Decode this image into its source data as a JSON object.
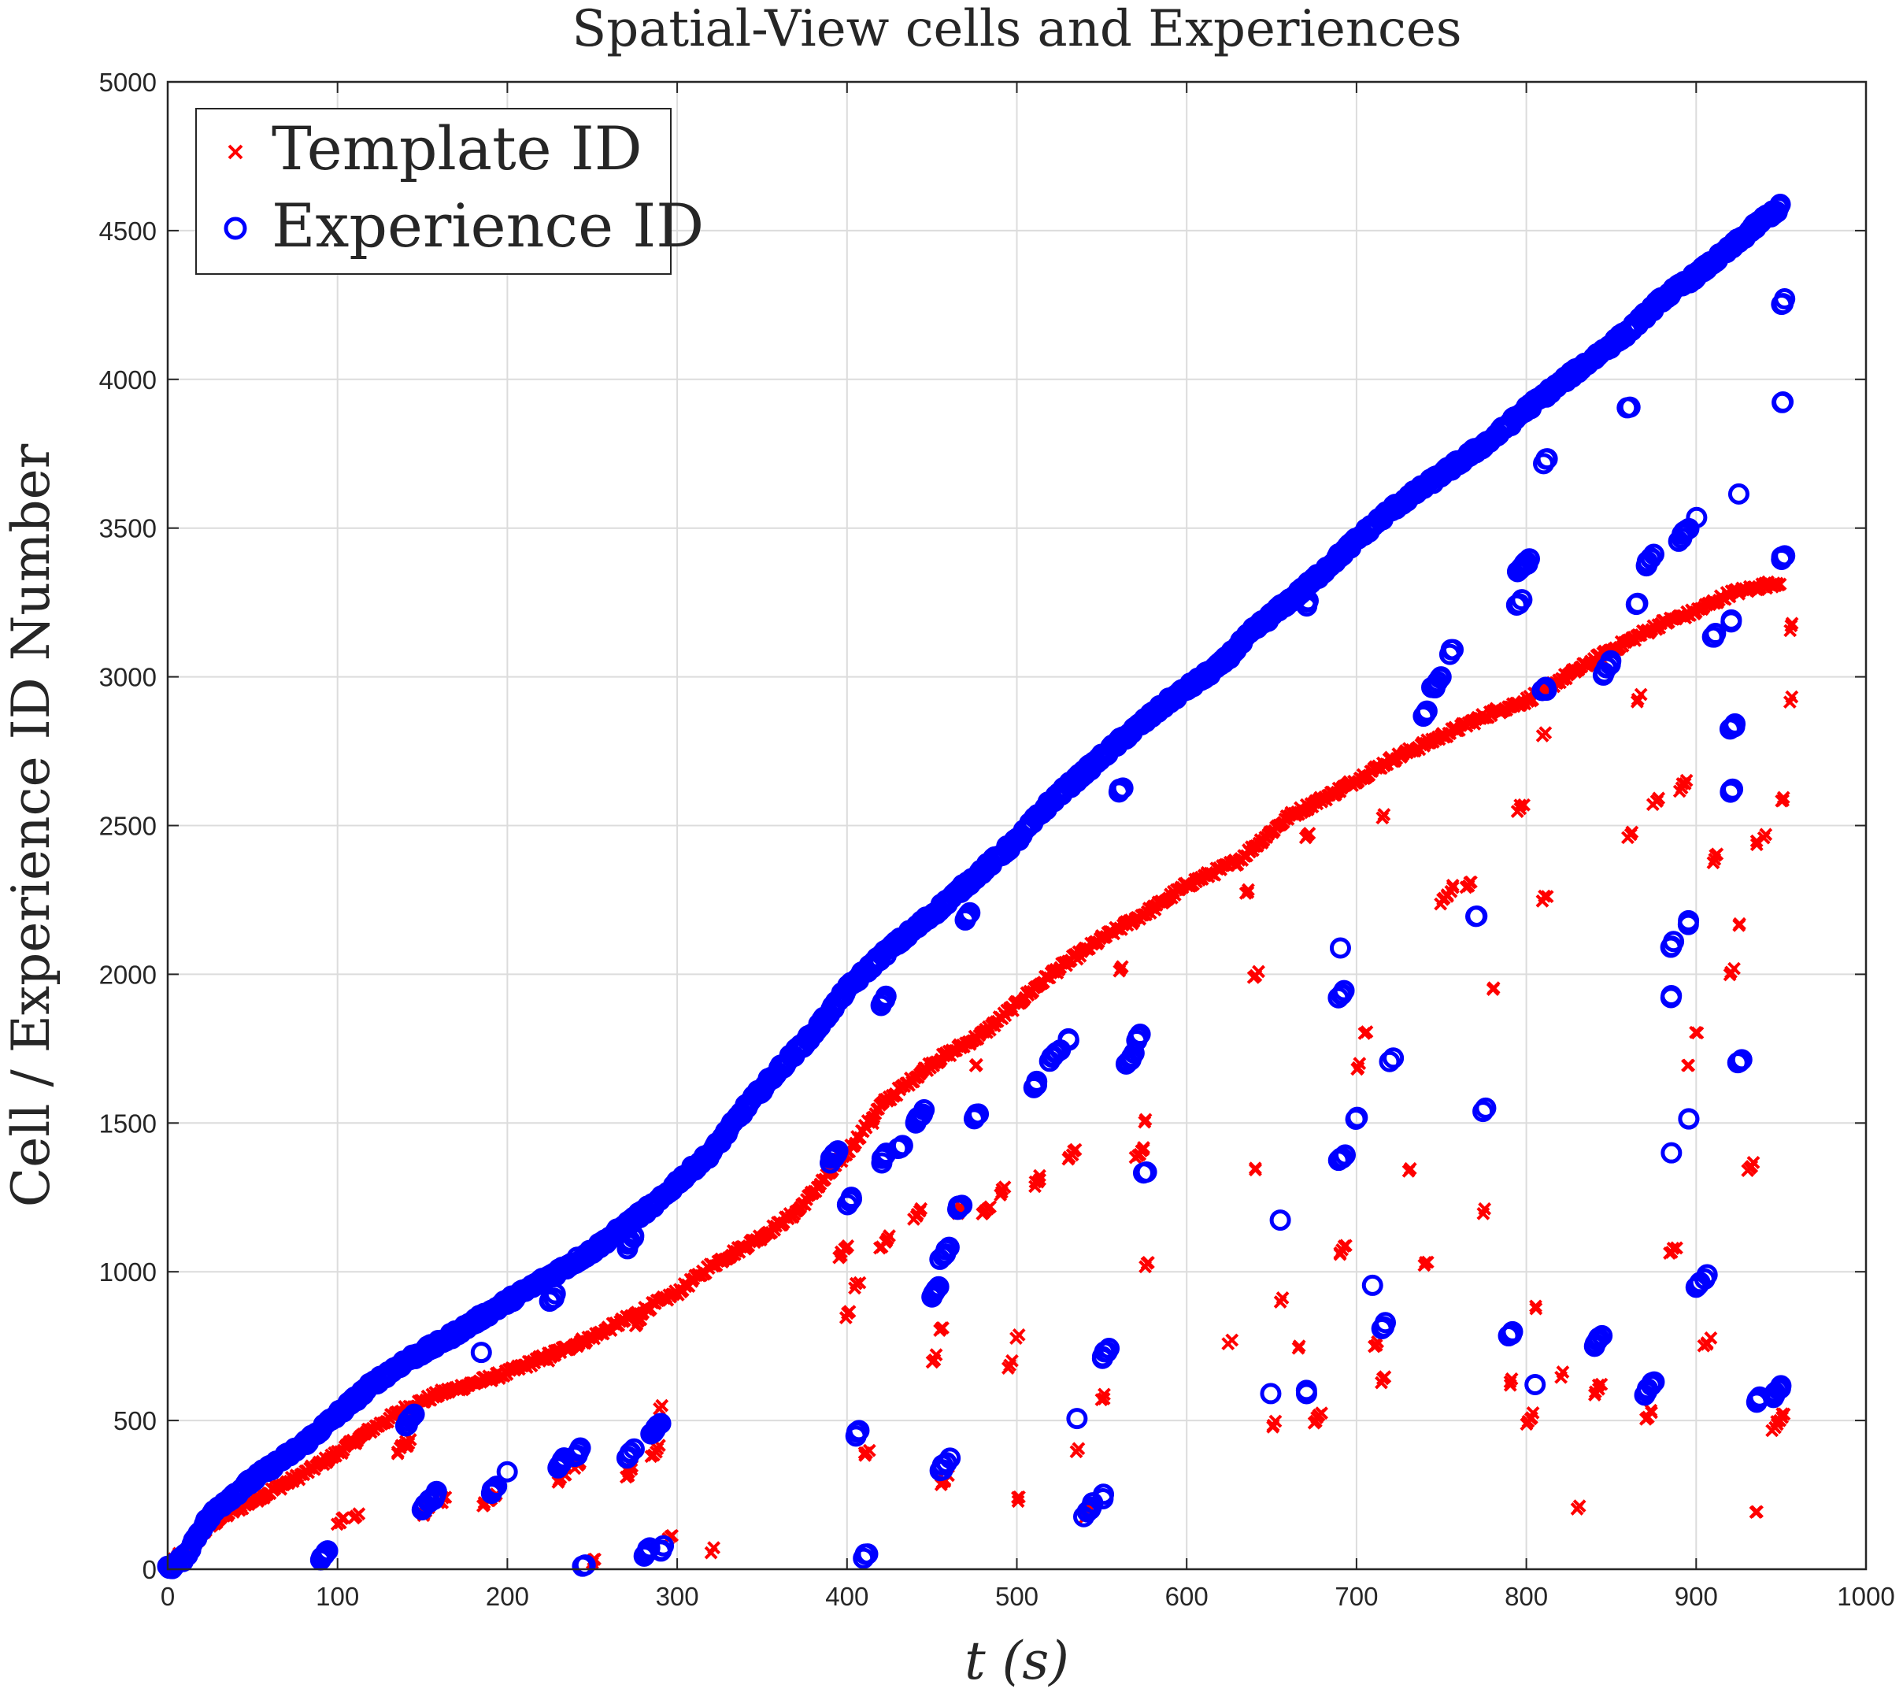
{
  "chart_data": {
    "type": "scatter",
    "title": "Spatial-View cells and Experiences",
    "xlabel": "t (s)",
    "ylabel": "Cell / Experience ID Number",
    "xlim": [
      0,
      1000
    ],
    "ylim": [
      0,
      5000
    ],
    "xticks": [
      0,
      100,
      200,
      300,
      400,
      500,
      600,
      700,
      800,
      900,
      1000
    ],
    "yticks": [
      0,
      500,
      1000,
      1500,
      2000,
      2500,
      3000,
      3500,
      4000,
      4500,
      5000
    ],
    "grid": true,
    "legend_position": "top-left",
    "series": [
      {
        "name": "Template ID",
        "marker": "x",
        "color": "#ff0000",
        "main_trend": [
          [
            0,
            0
          ],
          [
            10,
            40
          ],
          [
            20,
            120
          ],
          [
            30,
            170
          ],
          [
            50,
            230
          ],
          [
            80,
            320
          ],
          [
            100,
            390
          ],
          [
            120,
            470
          ],
          [
            140,
            540
          ],
          [
            160,
            590
          ],
          [
            200,
            660
          ],
          [
            250,
            780
          ],
          [
            280,
            870
          ],
          [
            300,
            930
          ],
          [
            320,
            1020
          ],
          [
            350,
            1120
          ],
          [
            370,
            1200
          ],
          [
            400,
            1400
          ],
          [
            420,
            1560
          ],
          [
            450,
            1700
          ],
          [
            480,
            1800
          ],
          [
            500,
            1900
          ],
          [
            520,
            2000
          ],
          [
            550,
            2120
          ],
          [
            580,
            2220
          ],
          [
            600,
            2300
          ],
          [
            630,
            2380
          ],
          [
            660,
            2530
          ],
          [
            690,
            2620
          ],
          [
            720,
            2720
          ],
          [
            750,
            2800
          ],
          [
            780,
            2880
          ],
          [
            800,
            2920
          ],
          [
            820,
            2990
          ],
          [
            850,
            3090
          ],
          [
            880,
            3180
          ],
          [
            900,
            3220
          ],
          [
            920,
            3280
          ],
          [
            950,
            3320
          ]
        ],
        "clusters": [
          [
            0,
            0,
            8
          ],
          [
            100,
            150,
            4
          ],
          [
            110,
            170,
            3
          ],
          [
            135,
            390,
            6
          ],
          [
            140,
            410,
            4
          ],
          [
            150,
            180,
            6
          ],
          [
            160,
            220,
            4
          ],
          [
            185,
            210,
            4
          ],
          [
            190,
            230,
            4
          ],
          [
            225,
            700,
            6
          ],
          [
            230,
            290,
            5
          ],
          [
            240,
            340,
            4
          ],
          [
            250,
            20,
            3
          ],
          [
            270,
            310,
            5
          ],
          [
            275,
            820,
            5
          ],
          [
            285,
            380,
            5
          ],
          [
            290,
            540,
            2
          ],
          [
            295,
            100,
            3
          ],
          [
            320,
            60,
            2
          ],
          [
            395,
            1050,
            6
          ],
          [
            400,
            850,
            3
          ],
          [
            405,
            950,
            3
          ],
          [
            410,
            380,
            4
          ],
          [
            415,
            1500,
            2
          ],
          [
            420,
            1080,
            6
          ],
          [
            440,
            1180,
            5
          ],
          [
            450,
            700,
            3
          ],
          [
            455,
            800,
            3
          ],
          [
            455,
            280,
            5
          ],
          [
            465,
            1200,
            4
          ],
          [
            475,
            1690,
            2
          ],
          [
            480,
            1190,
            5
          ],
          [
            490,
            1260,
            4
          ],
          [
            495,
            680,
            3
          ],
          [
            500,
            780,
            2
          ],
          [
            500,
            230,
            3
          ],
          [
            510,
            1290,
            5
          ],
          [
            530,
            1380,
            5
          ],
          [
            535,
            400,
            2
          ],
          [
            540,
            180,
            6
          ],
          [
            550,
            570,
            3
          ],
          [
            560,
            2010,
            3
          ],
          [
            570,
            1380,
            6
          ],
          [
            575,
            1020,
            3
          ],
          [
            575,
            1500,
            2
          ],
          [
            625,
            760,
            2
          ],
          [
            635,
            2270,
            3
          ],
          [
            640,
            1990,
            3
          ],
          [
            640,
            1340,
            2
          ],
          [
            650,
            480,
            3
          ],
          [
            655,
            900,
            2
          ],
          [
            665,
            740,
            2
          ],
          [
            670,
            2460,
            3
          ],
          [
            675,
            490,
            5
          ],
          [
            690,
            1060,
            5
          ],
          [
            700,
            1680,
            3
          ],
          [
            705,
            1800,
            2
          ],
          [
            710,
            750,
            3
          ],
          [
            715,
            2530,
            2
          ],
          [
            715,
            630,
            3
          ],
          [
            730,
            1340,
            2
          ],
          [
            740,
            1020,
            3
          ],
          [
            750,
            2240,
            8
          ],
          [
            765,
            2290,
            4
          ],
          [
            775,
            1200,
            2
          ],
          [
            780,
            1950,
            2
          ],
          [
            790,
            620,
            3
          ],
          [
            795,
            2550,
            4
          ],
          [
            800,
            490,
            5
          ],
          [
            805,
            880,
            2
          ],
          [
            810,
            2250,
            3
          ],
          [
            810,
            2800,
            2
          ],
          [
            820,
            650,
            2
          ],
          [
            830,
            200,
            2
          ],
          [
            840,
            590,
            5
          ],
          [
            860,
            2460,
            3
          ],
          [
            865,
            2920,
            3
          ],
          [
            870,
            500,
            5
          ],
          [
            875,
            2570,
            4
          ],
          [
            885,
            1060,
            4
          ],
          [
            890,
            2620,
            5
          ],
          [
            895,
            1690,
            2
          ],
          [
            900,
            1800,
            2
          ],
          [
            905,
            750,
            4
          ],
          [
            910,
            2380,
            4
          ],
          [
            920,
            2000,
            3
          ],
          [
            925,
            2160,
            2
          ],
          [
            930,
            1340,
            4
          ],
          [
            935,
            2440,
            2
          ],
          [
            940,
            2460,
            2
          ],
          [
            945,
            470,
            8
          ],
          [
            950,
            2580,
            3
          ],
          [
            955,
            3160,
            3
          ],
          [
            955,
            2920,
            2
          ],
          [
            935,
            190,
            2
          ]
        ]
      },
      {
        "name": "Experience ID",
        "marker": "o",
        "color": "#0000ff",
        "main_trend": [
          [
            0,
            0
          ],
          [
            10,
            40
          ],
          [
            20,
            140
          ],
          [
            30,
            210
          ],
          [
            50,
            300
          ],
          [
            80,
            420
          ],
          [
            100,
            520
          ],
          [
            120,
            620
          ],
          [
            140,
            700
          ],
          [
            160,
            760
          ],
          [
            200,
            900
          ],
          [
            250,
            1070
          ],
          [
            280,
            1200
          ],
          [
            290,
            1240
          ],
          [
            300,
            1300
          ],
          [
            320,
            1400
          ],
          [
            340,
            1550
          ],
          [
            360,
            1680
          ],
          [
            380,
            1800
          ],
          [
            400,
            1950
          ],
          [
            420,
            2060
          ],
          [
            450,
            2200
          ],
          [
            470,
            2300
          ],
          [
            500,
            2450
          ],
          [
            520,
            2580
          ],
          [
            540,
            2680
          ],
          [
            560,
            2780
          ],
          [
            590,
            2920
          ],
          [
            620,
            3040
          ],
          [
            640,
            3160
          ],
          [
            670,
            3300
          ],
          [
            700,
            3460
          ],
          [
            720,
            3560
          ],
          [
            750,
            3680
          ],
          [
            780,
            3800
          ],
          [
            800,
            3900
          ],
          [
            830,
            4030
          ],
          [
            860,
            4160
          ],
          [
            880,
            4270
          ],
          [
            900,
            4350
          ],
          [
            920,
            4440
          ],
          [
            940,
            4540
          ],
          [
            950,
            4580
          ]
        ],
        "clusters": [
          [
            90,
            30,
            5
          ],
          [
            140,
            480,
            6
          ],
          [
            150,
            200,
            5
          ],
          [
            155,
            230,
            5
          ],
          [
            185,
            730,
            1
          ],
          [
            190,
            260,
            4
          ],
          [
            200,
            330,
            1
          ],
          [
            225,
            900,
            4
          ],
          [
            230,
            340,
            5
          ],
          [
            240,
            380,
            4
          ],
          [
            245,
            10,
            2
          ],
          [
            270,
            1080,
            6
          ],
          [
            270,
            370,
            5
          ],
          [
            280,
            40,
            5
          ],
          [
            285,
            450,
            6
          ],
          [
            290,
            60,
            3
          ],
          [
            390,
            1370,
            6
          ],
          [
            400,
            1230,
            4
          ],
          [
            405,
            450,
            3
          ],
          [
            410,
            40,
            3
          ],
          [
            420,
            1370,
            4
          ],
          [
            420,
            1900,
            4
          ],
          [
            430,
            1410,
            3
          ],
          [
            440,
            1500,
            6
          ],
          [
            450,
            920,
            5
          ],
          [
            455,
            1040,
            6
          ],
          [
            455,
            330,
            6
          ],
          [
            465,
            1210,
            3
          ],
          [
            470,
            2180,
            4
          ],
          [
            475,
            1510,
            4
          ],
          [
            510,
            1620,
            3
          ],
          [
            520,
            1710,
            6
          ],
          [
            530,
            1780,
            2
          ],
          [
            535,
            510,
            1
          ],
          [
            540,
            180,
            6
          ],
          [
            550,
            710,
            5
          ],
          [
            550,
            240,
            2
          ],
          [
            560,
            2610,
            3
          ],
          [
            565,
            1700,
            5
          ],
          [
            570,
            1780,
            3
          ],
          [
            575,
            1330,
            2
          ],
          [
            610,
            2990,
            3
          ],
          [
            650,
            590,
            1
          ],
          [
            655,
            1170,
            1
          ],
          [
            670,
            3240,
            3
          ],
          [
            670,
            590,
            2
          ],
          [
            690,
            1370,
            4
          ],
          [
            690,
            1920,
            4
          ],
          [
            690,
            2090,
            1
          ],
          [
            700,
            1510,
            2
          ],
          [
            710,
            950,
            1
          ],
          [
            715,
            810,
            3
          ],
          [
            720,
            1710,
            2
          ],
          [
            740,
            2870,
            3
          ],
          [
            745,
            2960,
            6
          ],
          [
            755,
            3080,
            3
          ],
          [
            770,
            2190,
            2
          ],
          [
            775,
            1540,
            2
          ],
          [
            790,
            780,
            3
          ],
          [
            795,
            3350,
            6
          ],
          [
            795,
            3240,
            3
          ],
          [
            800,
            3380,
            3
          ],
          [
            805,
            620,
            1
          ],
          [
            810,
            3720,
            3
          ],
          [
            810,
            2950,
            3
          ],
          [
            840,
            750,
            5
          ],
          [
            845,
            3010,
            6
          ],
          [
            860,
            3900,
            2
          ],
          [
            865,
            3240,
            2
          ],
          [
            870,
            590,
            6
          ],
          [
            870,
            3370,
            6
          ],
          [
            885,
            1400,
            1
          ],
          [
            885,
            2090,
            3
          ],
          [
            885,
            1920,
            2
          ],
          [
            890,
            3460,
            6
          ],
          [
            895,
            1510,
            2
          ],
          [
            895,
            2170,
            2
          ],
          [
            900,
            3540,
            1
          ],
          [
            900,
            950,
            3
          ],
          [
            905,
            980,
            2
          ],
          [
            910,
            3130,
            3
          ],
          [
            920,
            3180,
            2
          ],
          [
            920,
            2610,
            3
          ],
          [
            920,
            2820,
            4
          ],
          [
            925,
            1700,
            3
          ],
          [
            925,
            3610,
            1
          ],
          [
            935,
            560,
            3
          ],
          [
            945,
            580,
            6
          ],
          [
            950,
            4250,
            3
          ],
          [
            950,
            3920,
            2
          ],
          [
            950,
            3390,
            3
          ]
        ]
      }
    ]
  }
}
